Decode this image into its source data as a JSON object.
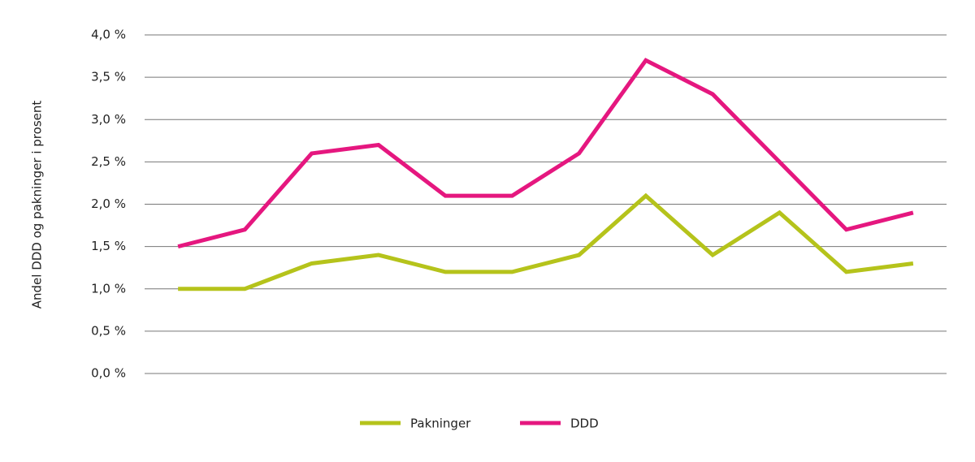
{
  "chart_data": {
    "type": "line",
    "y_label": "Andel DDD og pakninger i prosent",
    "categories": [
      null,
      null,
      null,
      null,
      null,
      null,
      null,
      null,
      null,
      null,
      null,
      null
    ],
    "series": [
      {
        "name": "Pakninger",
        "color": "#b5c31b",
        "values": [
          1.0,
          1.0,
          1.3,
          1.4,
          1.2,
          1.2,
          1.4,
          2.1,
          1.4,
          1.9,
          1.2,
          1.3
        ]
      },
      {
        "name": "DDD",
        "color": "#e5177f",
        "values": [
          1.5,
          1.7,
          2.6,
          2.7,
          2.1,
          2.1,
          2.6,
          3.7,
          3.3,
          2.5,
          1.7,
          1.9
        ]
      }
    ],
    "ylim": [
      0,
      4
    ],
    "yticks": [
      {
        "value": 0,
        "label": "0,0 %"
      },
      {
        "value": 0.5,
        "label": "0,5 %"
      },
      {
        "value": 1,
        "label": "1,0 %"
      },
      {
        "value": 1.5,
        "label": "1,5 %"
      },
      {
        "value": 2,
        "label": "2,0 %"
      },
      {
        "value": 2.5,
        "label": "2,5 %"
      },
      {
        "value": 3,
        "label": "3,0 %"
      },
      {
        "value": 3.5,
        "label": "3,5 %"
      },
      {
        "value": 4,
        "label": "4,0 %"
      }
    ],
    "grid": true,
    "legend": "bottom"
  }
}
